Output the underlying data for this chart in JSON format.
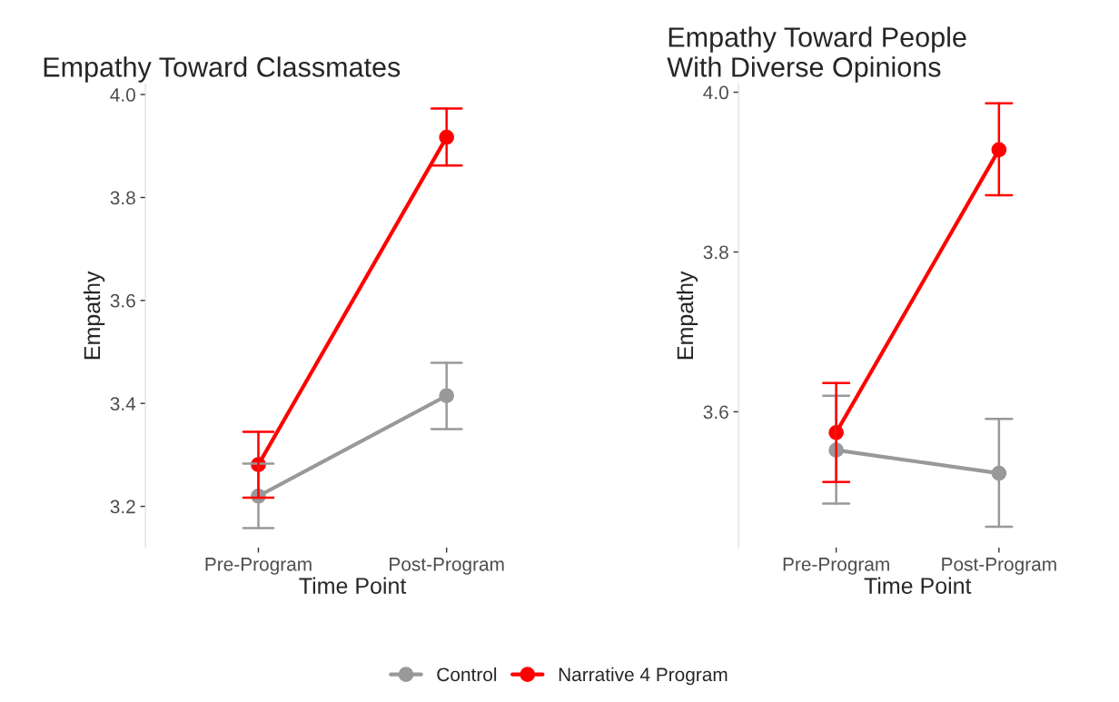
{
  "chart_data": [
    {
      "type": "line",
      "title": "Empathy Toward Classmates",
      "xlabel": "Time Point",
      "ylabel": "Empathy",
      "categories": [
        "Pre-Program",
        "Post-Program"
      ],
      "ylim": [
        3.12,
        4.02
      ],
      "yticks": [
        {
          "value": 3.2,
          "label": "3.2"
        },
        {
          "value": 3.4,
          "label": "3.4"
        },
        {
          "value": 3.6,
          "label": "3.6"
        },
        {
          "value": 3.8,
          "label": "3.8"
        },
        {
          "value": 4.0,
          "label": "4.0"
        }
      ],
      "grid": false,
      "marker": "circle",
      "legend": "bottom",
      "series": [
        {
          "name": "Control",
          "color": "#999999",
          "values": [
            3.22,
            3.415
          ],
          "errors": [
            [
              3.158,
              3.283
            ],
            [
              3.35,
              3.479
            ]
          ]
        },
        {
          "name": "Narrative 4 Program",
          "color": "#ff0000",
          "values": [
            3.281,
            3.917
          ],
          "errors": [
            [
              3.217,
              3.345
            ],
            [
              3.862,
              3.973
            ]
          ]
        }
      ]
    },
    {
      "type": "line",
      "title": "Empathy Toward People\nWith Diverse Opinions",
      "xlabel": "Time Point",
      "ylabel": "Empathy",
      "categories": [
        "Pre-Program",
        "Post-Program"
      ],
      "ylim": [
        3.43,
        4.01
      ],
      "yticks": [
        {
          "value": 3.6,
          "label": "3.6"
        },
        {
          "value": 3.8,
          "label": "3.8"
        },
        {
          "value": 4.0,
          "label": "4.0"
        }
      ],
      "grid": false,
      "marker": "circle",
      "series": [
        {
          "name": "Control",
          "color": "#999999",
          "values": [
            3.552,
            3.523
          ],
          "errors": [
            [
              3.485,
              3.62
            ],
            [
              3.456,
              3.591
            ]
          ]
        },
        {
          "name": "Narrative 4 Program",
          "color": "#ff0000",
          "values": [
            3.574,
            3.928
          ],
          "errors": [
            [
              3.512,
              3.636
            ],
            [
              3.871,
              3.986
            ]
          ]
        }
      ]
    }
  ]
}
